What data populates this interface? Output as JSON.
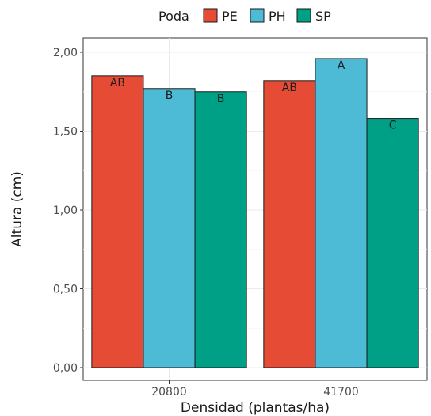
{
  "chart_data": {
    "type": "bar",
    "xlabel": "Densidad (plantas/ha)",
    "ylabel": "Altura (cm)",
    "ylim": [
      0,
      2.0
    ],
    "y_ticks": [
      "0,00",
      "0,50",
      "1,00",
      "1,50",
      "2,00"
    ],
    "categories": [
      "20800",
      "41700"
    ],
    "legend": {
      "title": "Poda",
      "placement": "top"
    },
    "grid": true,
    "series": [
      {
        "name": "PE",
        "color": "#E64B35",
        "values": [
          1.85,
          1.82
        ],
        "labels": [
          "AB",
          "AB"
        ]
      },
      {
        "name": "PH",
        "color": "#4DBBD5",
        "values": [
          1.77,
          1.96
        ],
        "labels": [
          "B",
          "A"
        ]
      },
      {
        "name": "SP",
        "color": "#00A087",
        "values": [
          1.75,
          1.58
        ],
        "labels": [
          "B",
          "C"
        ]
      }
    ]
  }
}
